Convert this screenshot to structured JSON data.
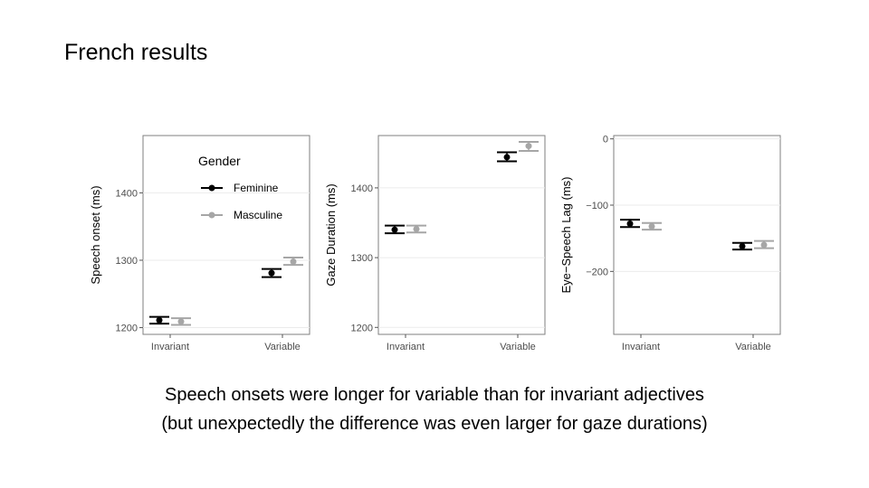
{
  "slide": {
    "title": "French results",
    "caption_line1": "Speech onsets were longer for variable than for invariant adjectives",
    "caption_line2": "(but unexpectedly the difference was even larger for gaze durations)"
  },
  "colors": {
    "Feminine": "#000000",
    "Masculine": "#a6a6a6",
    "panel_border": "#7f7f7f",
    "grid": "#ebebeb"
  },
  "chart_data": [
    {
      "type": "scatter",
      "ylabel": "Speech onset (ms)",
      "categories": [
        "Invariant",
        "Variable"
      ],
      "yticks": [
        1200,
        1300,
        1400
      ],
      "ylim": [
        1190,
        1485
      ],
      "legend": {
        "title": "Gender",
        "placement": "top-left",
        "entries": [
          "Feminine",
          "Masculine"
        ]
      },
      "series": [
        {
          "name": "Feminine",
          "values": [
            1211,
            1281
          ],
          "ci": [
            [
              1206,
              1216
            ],
            [
              1275,
              1287
            ]
          ]
        },
        {
          "name": "Masculine",
          "values": [
            1209,
            1298
          ],
          "ci": [
            [
              1204,
              1214
            ],
            [
              1293,
              1304
            ]
          ]
        }
      ]
    },
    {
      "type": "scatter",
      "ylabel": "Gaze Duration (ms)",
      "categories": [
        "Invariant",
        "Variable"
      ],
      "yticks": [
        1200,
        1300,
        1400
      ],
      "ylim": [
        1190,
        1475
      ],
      "series": [
        {
          "name": "Feminine",
          "values": [
            1340,
            1444
          ],
          "ci": [
            [
              1335,
              1346
            ],
            [
              1438,
              1451
            ]
          ]
        },
        {
          "name": "Masculine",
          "values": [
            1341,
            1460
          ],
          "ci": [
            [
              1336,
              1346
            ],
            [
              1453,
              1466
            ]
          ]
        }
      ]
    },
    {
      "type": "scatter",
      "ylabel": "Eye−Speech Lag (ms)",
      "categories": [
        "Invariant",
        "Variable"
      ],
      "yticks": [
        0,
        -100,
        -200
      ],
      "ytick_labels": [
        "0",
        "−100",
        "−200"
      ],
      "ylim": [
        -295,
        5
      ],
      "series": [
        {
          "name": "Feminine",
          "values": [
            -128,
            -162
          ],
          "ci": [
            [
              -133,
              -122
            ],
            [
              -167,
              -157
            ]
          ]
        },
        {
          "name": "Masculine",
          "values": [
            -132,
            -160
          ],
          "ci": [
            [
              -137,
              -127
            ],
            [
              -165,
              -154
            ]
          ]
        }
      ]
    }
  ]
}
